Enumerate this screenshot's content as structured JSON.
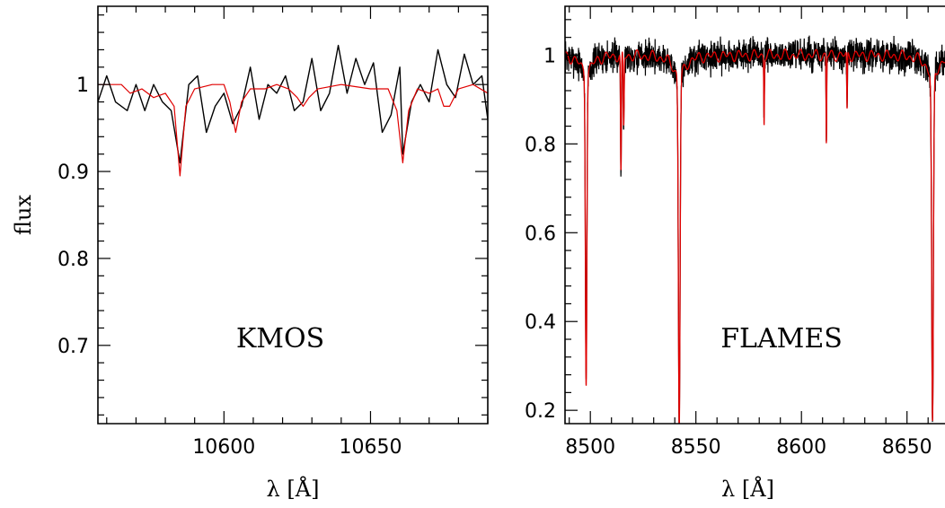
{
  "chart_data": [
    {
      "type": "line",
      "annotation": "KMOS",
      "xlabel": "λ [Å]",
      "ylabel": "flux",
      "xlim": [
        10557,
        10690
      ],
      "ylim": [
        0.61,
        1.09
      ],
      "xticks": [
        10600,
        10650
      ],
      "yticks": [
        0.7,
        0.8,
        0.9,
        1
      ],
      "grid": false,
      "series": [
        {
          "color": "#000000",
          "points": [
            [
              10557,
              0.98
            ],
            [
              10560,
              1.01
            ],
            [
              10563,
              0.98
            ],
            [
              10567,
              0.97
            ],
            [
              10570,
              1.0
            ],
            [
              10573,
              0.97
            ],
            [
              10576,
              1.0
            ],
            [
              10579,
              0.98
            ],
            [
              10582,
              0.97
            ],
            [
              10585,
              0.91
            ],
            [
              10588,
              1.0
            ],
            [
              10591,
              1.01
            ],
            [
              10594,
              0.945
            ],
            [
              10597,
              0.975
            ],
            [
              10600,
              0.99
            ],
            [
              10603,
              0.955
            ],
            [
              10606,
              0.975
            ],
            [
              10609,
              1.02
            ],
            [
              10612,
              0.96
            ],
            [
              10615,
              1.0
            ],
            [
              10618,
              0.99
            ],
            [
              10621,
              1.01
            ],
            [
              10624,
              0.97
            ],
            [
              10627,
              0.98
            ],
            [
              10630,
              1.03
            ],
            [
              10633,
              0.97
            ],
            [
              10636,
              0.99
            ],
            [
              10639,
              1.045
            ],
            [
              10642,
              0.99
            ],
            [
              10645,
              1.03
            ],
            [
              10648,
              1.0
            ],
            [
              10651,
              1.025
            ],
            [
              10654,
              0.945
            ],
            [
              10657,
              0.965
            ],
            [
              10660,
              1.02
            ],
            [
              10661,
              0.92
            ],
            [
              10664,
              0.98
            ],
            [
              10667,
              1.0
            ],
            [
              10670,
              0.98
            ],
            [
              10673,
              1.04
            ],
            [
              10676,
              1.0
            ],
            [
              10679,
              0.985
            ],
            [
              10682,
              1.035
            ],
            [
              10685,
              1.0
            ],
            [
              10688,
              1.01
            ],
            [
              10690,
              0.96
            ]
          ]
        },
        {
          "color": "#e00000",
          "points": [
            [
              10557,
              1.0
            ],
            [
              10565,
              1.0
            ],
            [
              10568,
              0.99
            ],
            [
              10572,
              0.995
            ],
            [
              10576,
              0.985
            ],
            [
              10580,
              0.99
            ],
            [
              10583,
              0.975
            ],
            [
              10585,
              0.895
            ],
            [
              10587,
              0.975
            ],
            [
              10590,
              0.995
            ],
            [
              10596,
              1.0
            ],
            [
              10600,
              1.0
            ],
            [
              10602,
              0.98
            ],
            [
              10604,
              0.945
            ],
            [
              10606,
              0.98
            ],
            [
              10609,
              0.995
            ],
            [
              10614,
              0.995
            ],
            [
              10618,
              1.0
            ],
            [
              10622,
              0.995
            ],
            [
              10625,
              0.985
            ],
            [
              10627,
              0.975
            ],
            [
              10629,
              0.985
            ],
            [
              10632,
              0.995
            ],
            [
              10640,
              1.0
            ],
            [
              10650,
              0.995
            ],
            [
              10656,
              0.995
            ],
            [
              10659,
              0.97
            ],
            [
              10661,
              0.91
            ],
            [
              10663,
              0.97
            ],
            [
              10666,
              0.995
            ],
            [
              10670,
              0.99
            ],
            [
              10673,
              0.995
            ],
            [
              10675,
              0.975
            ],
            [
              10677,
              0.975
            ],
            [
              10680,
              0.995
            ],
            [
              10685,
              1.0
            ],
            [
              10690,
              0.99
            ]
          ]
        }
      ]
    },
    {
      "type": "line",
      "annotation": "FLAMES",
      "xlabel": "λ [Å]",
      "ylabel": "",
      "xlim": [
        8488,
        8668
      ],
      "ylim": [
        0.17,
        1.11
      ],
      "xticks": [
        8500,
        8550,
        8600,
        8650
      ],
      "yticks": [
        0.2,
        0.4,
        0.6,
        0.8,
        1
      ],
      "grid": false,
      "baseline": 1.0,
      "noise": 0.022,
      "lines": [
        {
          "center": 8498.0,
          "depth": 0.69,
          "width": 0.35,
          "wing": 0.5
        },
        {
          "center": 8514.5,
          "depth": 0.27,
          "width": 0.2,
          "wing": 0
        },
        {
          "center": 8515.8,
          "depth": 0.16,
          "width": 0.2,
          "wing": 0
        },
        {
          "center": 8542.1,
          "depth": 0.79,
          "width": 0.4,
          "wing": 0.55
        },
        {
          "center": 8582.3,
          "depth": 0.15,
          "width": 0.15,
          "wing": 0
        },
        {
          "center": 8611.8,
          "depth": 0.2,
          "width": 0.15,
          "wing": 0
        },
        {
          "center": 8621.6,
          "depth": 0.13,
          "width": 0.15,
          "wing": 0
        },
        {
          "center": 8662.1,
          "depth": 0.79,
          "width": 0.4,
          "wing": 0.55
        }
      ]
    }
  ]
}
